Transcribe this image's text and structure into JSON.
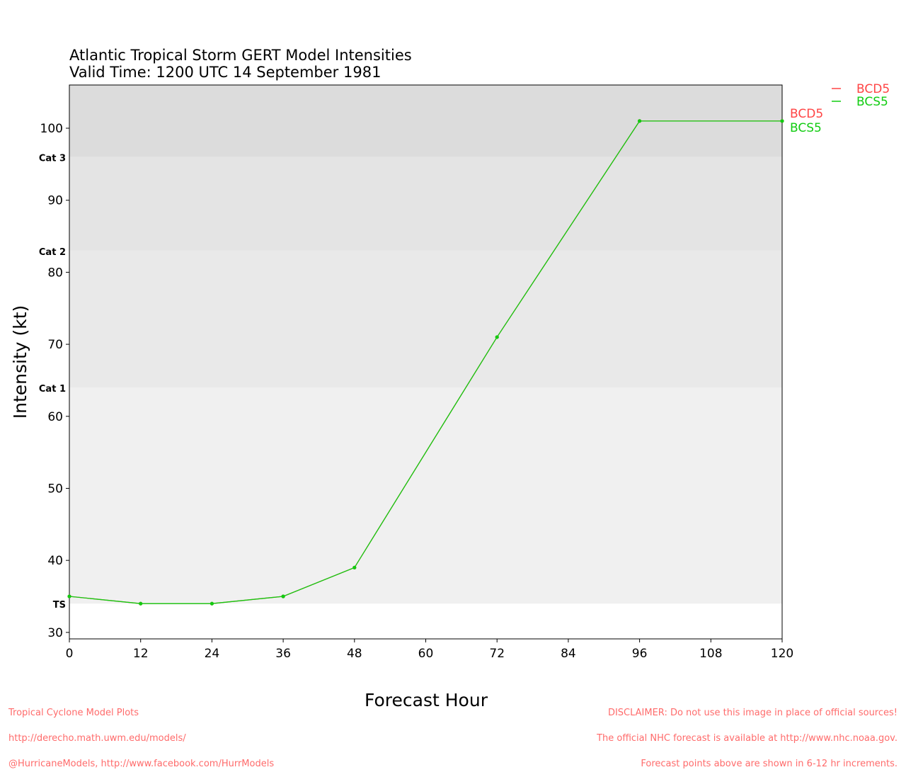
{
  "chart_data": {
    "type": "line",
    "title": "Atlantic Tropical Storm GERT Model Intensities",
    "subtitle": "Valid Time: 1200 UTC 14 September 1981",
    "xlabel": "Forecast Hour",
    "ylabel": "Intensity (kt)",
    "xlim": [
      0,
      120
    ],
    "ylim": [
      29.1,
      106
    ],
    "xticks": [
      0,
      12,
      24,
      36,
      48,
      60,
      72,
      84,
      96,
      108,
      120
    ],
    "yticks": [
      30,
      40,
      50,
      60,
      70,
      80,
      90,
      100
    ],
    "grid": false,
    "legend_position": "top-right outside",
    "category_bands": [
      {
        "label": "TS",
        "from": 34,
        "to": 64,
        "color": "#f0f0f0"
      },
      {
        "label": "Cat 1",
        "from": 64,
        "to": 83,
        "color": "#e9e9e9"
      },
      {
        "label": "Cat 2",
        "from": 83,
        "to": 96,
        "color": "#e4e4e4"
      },
      {
        "label": "Cat 3",
        "from": 96,
        "to": 106,
        "color": "#dcdcdc"
      }
    ],
    "series": [
      {
        "name": "BCD5",
        "color": "#ff4444",
        "x": [
          0,
          12,
          24,
          36,
          48,
          72,
          96,
          120
        ],
        "y": [
          35,
          34,
          34,
          35,
          39,
          71,
          101,
          101
        ]
      },
      {
        "name": "BCS5",
        "color": "#11cc11",
        "x": [
          0,
          12,
          24,
          36,
          48,
          72,
          96,
          120
        ],
        "y": [
          35,
          34,
          34,
          35,
          39,
          71,
          101,
          101
        ]
      }
    ]
  },
  "footer": {
    "left": [
      "Tropical Cyclone Model Plots",
      "http://derecho.math.uwm.edu/models/",
      "@HurricaneModels, http://www.facebook.com/HurrModels"
    ],
    "right": [
      "DISCLAIMER: Do not use this image in place of official sources!",
      "The official NHC forecast is available at http://www.nhc.noaa.gov.",
      "Forecast points above are shown in 6-12 hr increments."
    ]
  }
}
